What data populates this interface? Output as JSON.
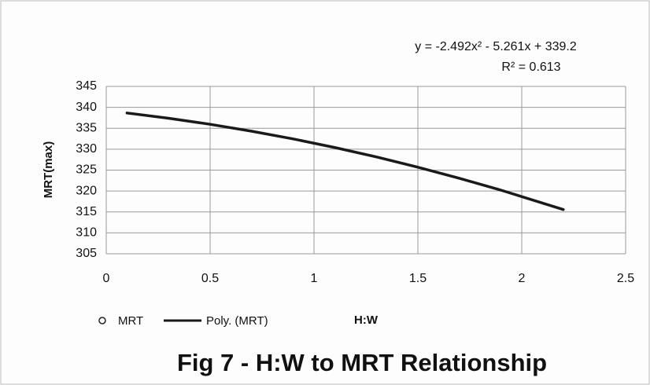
{
  "chart_data": {
    "type": "line",
    "title": "Fig 7 - H:W to MRT Relationship",
    "x_label": "H:W",
    "y_label": "MRT(max)",
    "annotations": [
      "y = -2.492x² - 5.261x + 339.2",
      "R² = 0.613"
    ],
    "series": [
      {
        "name": "MRT",
        "color": "#222222",
        "marker": "circle",
        "x": [],
        "values": []
      },
      {
        "name": "Poly. (MRT)",
        "color": "#1a1a1a",
        "x": [
          0.1,
          0.3,
          0.5,
          0.7,
          0.9,
          1.1,
          1.3,
          1.5,
          1.7,
          1.9,
          2.2
        ],
        "values": [
          338.65,
          337.4,
          335.95,
          334.3,
          332.45,
          330.4,
          328.15,
          325.7,
          323.05,
          320.21,
          315.57
        ]
      }
    ],
    "xlim": [
      0,
      2.5
    ],
    "xticks": [
      0,
      0.5,
      1,
      1.5,
      2,
      2.5
    ],
    "ylim": [
      305,
      345
    ],
    "yticks": [
      305,
      310,
      315,
      320,
      325,
      330,
      335,
      340,
      345
    ],
    "grid": true
  }
}
